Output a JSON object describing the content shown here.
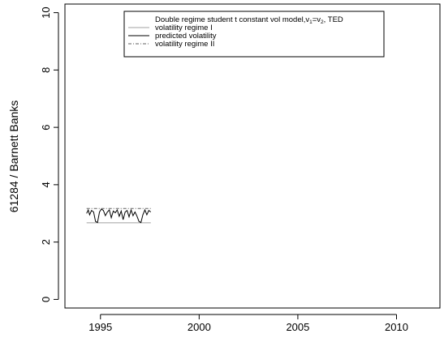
{
  "chart_data": {
    "type": "line",
    "title": "",
    "xlabel": "",
    "ylabel": "61284 / Barnett Banks",
    "xlim": [
      1993.2,
      2012.2
    ],
    "ylim": [
      -0.3,
      10.3
    ],
    "x_ticks": [
      1995,
      2000,
      2005,
      2010
    ],
    "x_tick_labels": [
      "1995",
      "2000",
      "2005",
      "2010"
    ],
    "y_ticks": [
      0,
      2,
      4,
      6,
      8,
      10
    ],
    "y_tick_labels": [
      "0",
      "2",
      "4",
      "6",
      "8",
      "10"
    ],
    "grid": false,
    "legend": {
      "placement": "top-center",
      "title": "Double regime student t constant vol model,v₁=v₂, TED",
      "title_parts": {
        "pre": "Double regime student t constant vol model,v",
        "sub1": "1",
        "mid": "=v",
        "sub2": "2",
        "post": ", TED"
      },
      "entries": [
        "volatility regime I",
        "predicted volatility",
        "volatility regime II"
      ]
    },
    "series": [
      {
        "name": "volatility regime I",
        "color": "#a0a0a0",
        "line_style": "solid",
        "x": [
          1994.3,
          1997.55
        ],
        "y": [
          2.67,
          2.67
        ]
      },
      {
        "name": "predicted volatility",
        "color": "#000000",
        "line_style": "solid",
        "x": [
          1994.3,
          1994.38,
          1994.45,
          1994.55,
          1994.65,
          1994.75,
          1994.85,
          1994.95,
          1995.05,
          1995.15,
          1995.25,
          1995.35,
          1995.45,
          1995.55,
          1995.65,
          1995.75,
          1995.85,
          1995.95,
          1996.05,
          1996.15,
          1996.25,
          1996.35,
          1996.45,
          1996.55,
          1996.65,
          1996.75,
          1996.85,
          1996.95,
          1997.05,
          1997.15,
          1997.25,
          1997.35,
          1997.45,
          1997.55
        ],
        "y": [
          3.0,
          3.12,
          2.95,
          3.1,
          3.05,
          2.72,
          2.68,
          3.05,
          3.15,
          3.1,
          2.92,
          3.05,
          3.12,
          2.85,
          3.08,
          3.02,
          3.12,
          2.9,
          3.08,
          2.78,
          3.05,
          3.1,
          2.88,
          3.12,
          2.92,
          3.05,
          2.9,
          2.72,
          2.68,
          2.95,
          3.12,
          2.95,
          3.1,
          3.05
        ]
      },
      {
        "name": "volatility regime II",
        "color": "#606060",
        "line_style": "dash-dot",
        "x": [
          1994.3,
          1997.55
        ],
        "y": [
          3.17,
          3.17
        ]
      }
    ]
  }
}
